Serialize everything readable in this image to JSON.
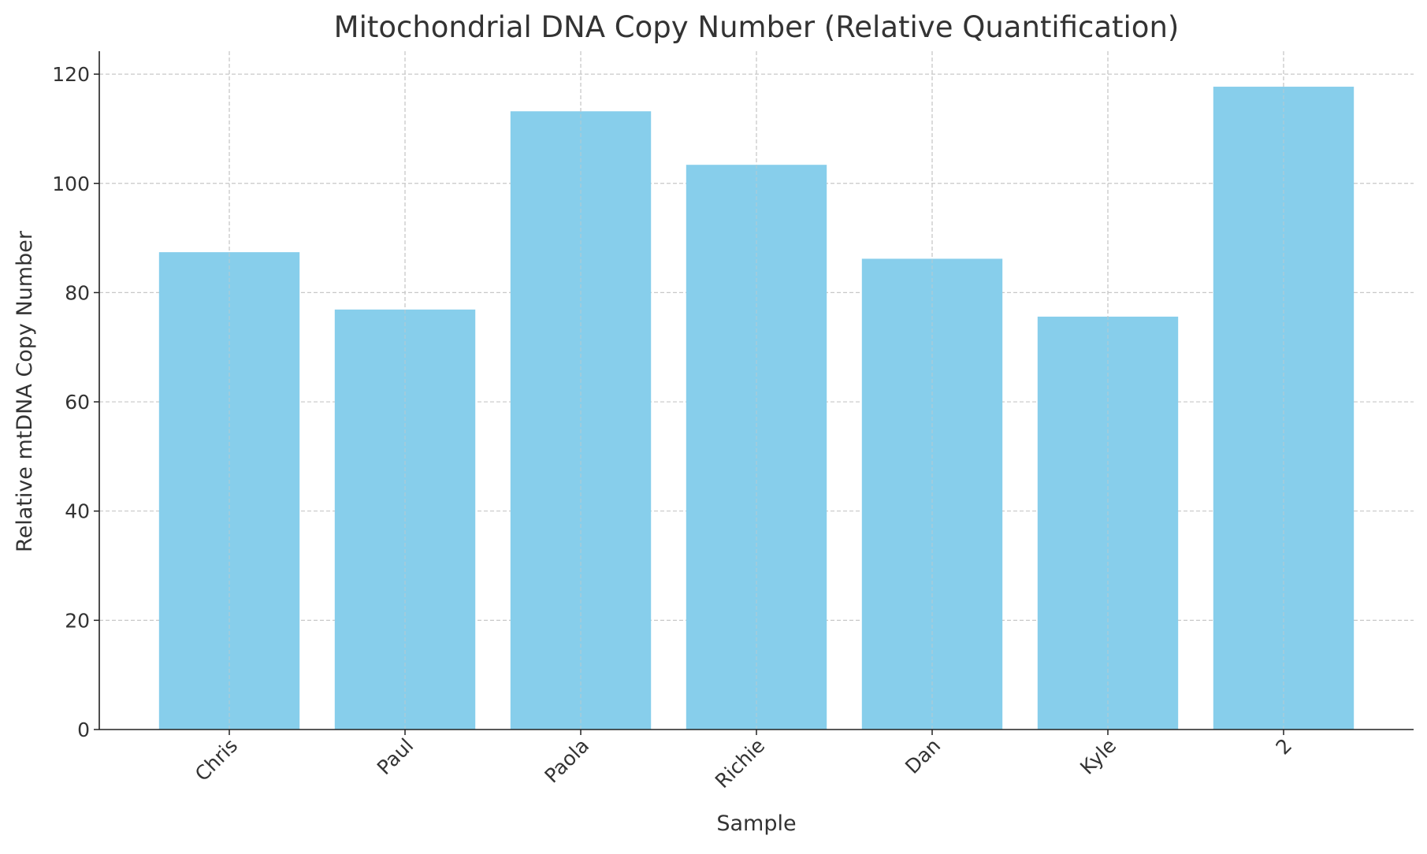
{
  "chart_data": {
    "type": "bar",
    "title": "Mitochondrial DNA Copy Number (Relative Quantification)",
    "xlabel": "Sample",
    "ylabel": "Relative mtDNA Copy Number",
    "categories": [
      "Chris",
      "Paul",
      "Paola",
      "Richie",
      "Dan",
      "Kyle",
      "2"
    ],
    "values": [
      87.4,
      76.9,
      113.2,
      103.4,
      86.2,
      75.6,
      117.7
    ],
    "ylim": [
      0,
      120
    ],
    "yticks": [
      0,
      20,
      40,
      60,
      80,
      100,
      120
    ],
    "grid": true,
    "bar_color": "#87CEEB",
    "xtick_rotation": 45
  }
}
